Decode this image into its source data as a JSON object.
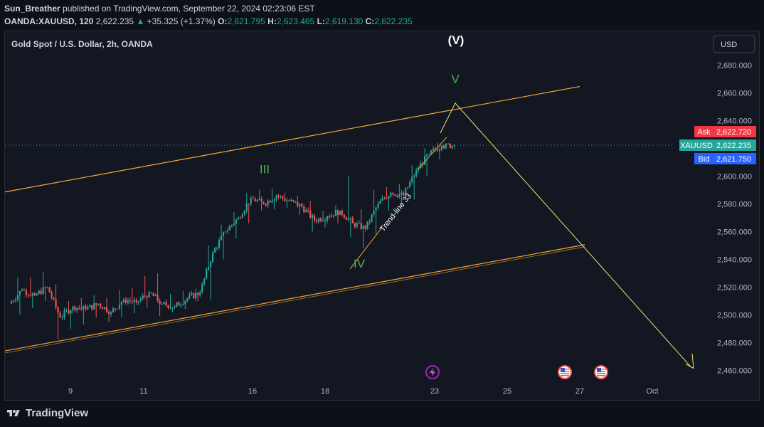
{
  "header": {
    "author": "Sun_Breather",
    "published_text": "published on TradingView.com, September 22, 2024 02:23:06 EST"
  },
  "quote": {
    "symbol": "OANDA:XAUUSD, 120",
    "last": "2,622.235",
    "change_arrow": "▲",
    "change": "+35.325 (+1.37%)",
    "open_label": "O:",
    "open": "2,621.795",
    "high_label": "H:",
    "high": "2,623.465",
    "low_label": "L:",
    "low": "2,619.130",
    "close_label": "C:",
    "close": "2,622.235"
  },
  "currency_button": "USD",
  "colors": {
    "background": "#131722",
    "up": "#26a69a",
    "down": "#ef5350",
    "channel": "#f7a935",
    "projection": "#f2e06e",
    "wave_label": "#4caf50",
    "ask": "#f23645",
    "bid": "#2962ff"
  },
  "footer": {
    "brand": "TradingView"
  },
  "chart_data": {
    "type": "candlestick",
    "title": "Gold Spot / U.S. Dollar, 2h, OANDA",
    "x_ticks": [
      "9",
      "11",
      "16",
      "18",
      "23",
      "25",
      "27",
      "Oct"
    ],
    "y_ticks": [
      "2,680.000",
      "2,660.000",
      "2,640.000",
      "2,600.000",
      "2,580.000",
      "2,560.000",
      "2,540.000",
      "2,520.000",
      "2,500.000",
      "2,480.000",
      "2,460.000"
    ],
    "ylim": [
      2452,
      2694
    ],
    "price_labels": [
      {
        "label": "Ask",
        "value": "2,622.720",
        "color": "#f23645"
      },
      {
        "label": "XAUUSD",
        "value": "2,622.235",
        "color": "#26a69a"
      },
      {
        "label": "Bid",
        "value": "2,621.750",
        "color": "#2962ff"
      }
    ],
    "last_price": 2622.235,
    "segments": [
      [
        2508,
        2518,
        2500,
        2527
      ],
      [
        2518,
        2514,
        2505,
        2527
      ],
      [
        2514,
        2520,
        2510,
        2531
      ],
      [
        2520,
        2498,
        2482,
        2522
      ],
      [
        2498,
        2506,
        2490,
        2510
      ],
      [
        2506,
        2504,
        2493,
        2512
      ],
      [
        2504,
        2508,
        2498,
        2514
      ],
      [
        2508,
        2502,
        2495,
        2512
      ],
      [
        2502,
        2511,
        2498,
        2518
      ],
      [
        2511,
        2509,
        2501,
        2519
      ],
      [
        2509,
        2516,
        2505,
        2528
      ],
      [
        2516,
        2508,
        2499,
        2530
      ],
      [
        2508,
        2506,
        2502,
        2515
      ],
      [
        2506,
        2512,
        2504,
        2517
      ],
      [
        2512,
        2516,
        2510,
        2519
      ],
      [
        2516,
        2545,
        2511,
        2550
      ],
      [
        2545,
        2560,
        2540,
        2565
      ],
      [
        2560,
        2570,
        2555,
        2574
      ],
      [
        2570,
        2584,
        2566,
        2588
      ],
      [
        2584,
        2580,
        2575,
        2590
      ],
      [
        2580,
        2586,
        2576,
        2591
      ],
      [
        2586,
        2582,
        2577,
        2588
      ],
      [
        2582,
        2578,
        2572,
        2586
      ],
      [
        2578,
        2568,
        2560,
        2582
      ],
      [
        2568,
        2571,
        2563,
        2575
      ],
      [
        2571,
        2575,
        2566,
        2579
      ],
      [
        2575,
        2566,
        2556,
        2600
      ],
      [
        2566,
        2562,
        2548,
        2576
      ],
      [
        2562,
        2580,
        2558,
        2590
      ],
      [
        2580,
        2588,
        2575,
        2592
      ],
      [
        2588,
        2586,
        2580,
        2594
      ],
      [
        2586,
        2604,
        2583,
        2608
      ],
      [
        2604,
        2616,
        2600,
        2620
      ],
      [
        2616,
        2622,
        2612,
        2624
      ],
      [
        2622,
        2622.235,
        2619,
        2623.5
      ]
    ],
    "bars_per_segment": 6,
    "segments_start_x": 9,
    "bar_spacing": 2.98,
    "annotations": {
      "waves": [
        {
          "text": "III",
          "style": "plain"
        },
        {
          "text": "IV",
          "style": "plain"
        },
        {
          "text": "V",
          "style": "plain"
        },
        {
          "text": "(V)",
          "style": "white"
        },
        {
          "text": "III",
          "style": "circled"
        }
      ],
      "trendline_label": "Trend-line 33"
    },
    "events": [
      {
        "icon": "lightning-icon"
      },
      {
        "icon": "us-flag-icon"
      },
      {
        "icon": "us-flag-icon"
      }
    ]
  }
}
